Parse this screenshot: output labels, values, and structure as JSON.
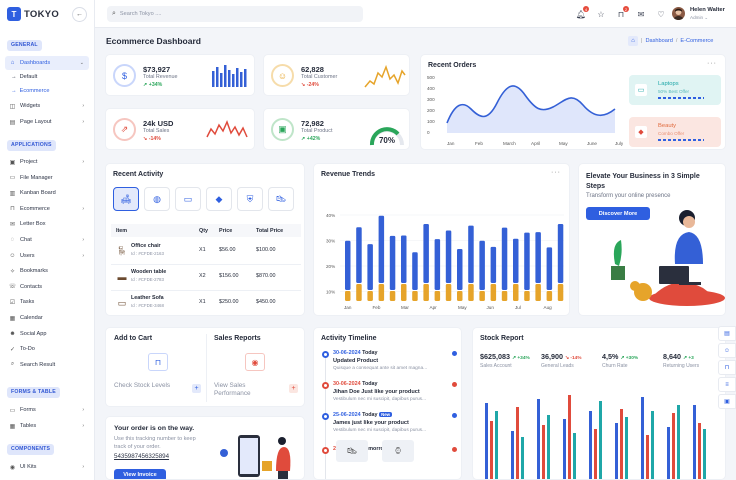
{
  "app": {
    "name": "TOKYO"
  },
  "sidebar": {
    "sections": {
      "general": "GENERAL",
      "applications": "APPLICATIONS",
      "forms": "FORMS & TABLE",
      "components": "COMPONENTS"
    },
    "dashboards": "Dashboards",
    "sub_default": "Default",
    "sub_ecommerce": "Ecommerce",
    "widgets": "Widgets",
    "page_layout": "Page Layout",
    "apps": [
      "Project",
      "File Manager",
      "Kanban Board",
      "Ecommerce",
      "Letter Box",
      "Chat",
      "Users",
      "Bookmarks",
      "Contacts",
      "Tasks",
      "Calendar",
      "Social App",
      "To-Do",
      "Search Result"
    ],
    "forms": "Forms",
    "tables": "Tables",
    "ui_kits": "UI Kits"
  },
  "topbar": {
    "search_placeholder": "Search Tokyo ....",
    "user_name": "Helen Walter",
    "user_role": "Admin",
    "notif_count": "4",
    "cart_count": "2"
  },
  "page": {
    "title": "Ecommerce Dashboard",
    "breadcrumb_home": "Dashboard",
    "breadcrumb_current": "E-Commerce"
  },
  "stats": [
    {
      "value": "$73,927",
      "label": "Total Revenue",
      "pct": "+34%",
      "dir": "up"
    },
    {
      "value": "62,828",
      "label": "Total Customer",
      "pct": "-24%",
      "dir": "down"
    },
    {
      "value": "24k USD",
      "label": "Total Sales",
      "pct": "-14%",
      "dir": "down"
    },
    {
      "value": "72,982",
      "label": "Total Product",
      "pct": "+42%",
      "dir": "up",
      "gauge": "70%"
    }
  ],
  "recent_orders": {
    "title": "Recent Orders",
    "months": [
      "Jan",
      "Feb",
      "March",
      "April",
      "May",
      "June",
      "July"
    ],
    "y_ticks": [
      "500",
      "400",
      "300",
      "200",
      "100",
      "0"
    ],
    "laptops_title": "Laptops",
    "laptops_sub": "50% Best Offer",
    "beauty_title": "Beauty",
    "beauty_sub": "Combo Offer"
  },
  "recent_activity": {
    "title": "Recent Activity",
    "headers": [
      "Item",
      "Qty",
      "Price",
      "Total Price"
    ],
    "rows": [
      {
        "name": "Office chair",
        "id": "Id : #CFDE-2163",
        "qty": "X1",
        "price": "$56.00",
        "total": "$100.00"
      },
      {
        "name": "Wooden table",
        "id": "Id : #CFDE-2783",
        "qty": "X2",
        "price": "$156.00",
        "total": "$870.00"
      },
      {
        "name": "Leather Sofa",
        "id": "Id : #CFDE-3468",
        "qty": "X1",
        "price": "$250.00",
        "total": "$450.00"
      }
    ]
  },
  "revenue_trends": {
    "title": "Revenue Trends",
    "y_ticks": [
      "40%",
      "30%",
      "20%",
      "10%"
    ],
    "months": [
      "Jan",
      "Feb",
      "Mar",
      "Apr",
      "May",
      "Jun",
      "Jul",
      "Aug"
    ]
  },
  "promo": {
    "title": "Elevate Your Business in 3 Simple Steps",
    "subtitle": "Transform your online presence",
    "button": "Discover More"
  },
  "add_to_cart": {
    "title": "Add to Cart",
    "link": "Check Stock Levels"
  },
  "sales_reports": {
    "title": "Sales Reports",
    "link": "View Sales Performance"
  },
  "order_track": {
    "title": "Your order is on the way.",
    "desc": "Use this tracking number to keep track of your order.",
    "tracking": "5435987456325894",
    "button": "View Invoice"
  },
  "timeline": {
    "title": "Activity Timeline",
    "items": [
      {
        "date": "30-06-2024",
        "day": "Today",
        "title": "Updated Product",
        "desc": "Quisque a consequat ante sit amet magna...",
        "color": "#2f5fe0"
      },
      {
        "date": "30-06-2024",
        "day": "Today",
        "title": "Jihan Doe Just like your product",
        "desc": "Vestibulum nec mi suscipit, dapibus purus...",
        "color": "#e04b3c"
      },
      {
        "date": "25-06-2024",
        "day": "Today",
        "badge": "New",
        "title": "James just like your product",
        "desc": "Vestibulum nec mi suscipit, dapibus purus...",
        "color": "#2f5fe0"
      },
      {
        "date": "25-06-2024",
        "day": "Tomorrow",
        "title": "",
        "desc": "",
        "color": "#e04b3c"
      }
    ]
  },
  "stock_report": {
    "title": "Stock Report",
    "metrics": [
      {
        "value": "$625,083",
        "pct": "+34%",
        "dir": "up",
        "label": "Sales Account"
      },
      {
        "value": "36,900",
        "pct": "-14%",
        "dir": "down",
        "label": "General Leads"
      },
      {
        "value": "4,5%",
        "pct": "+30%",
        "dir": "up",
        "label": "Churn Rate"
      },
      {
        "value": "8,640",
        "pct": "+3",
        "dir": "up",
        "label": "Returning Users"
      }
    ]
  },
  "colors": {
    "primary": "#2f5fe0",
    "danger": "#e04b3c",
    "success": "#2aa65a",
    "warning": "#e6a42a",
    "teal": "#1fa7a8"
  }
}
